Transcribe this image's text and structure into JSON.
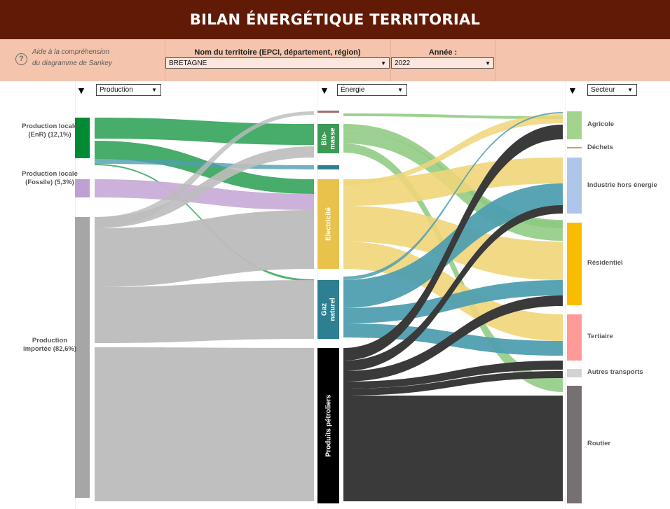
{
  "header": {
    "title": "BILAN ÉNERGÉTIQUE TERRITORIAL"
  },
  "help": {
    "line1": "Aide à la compréhension",
    "line2": "du diagramme de Sankey",
    "icon": "question-icon"
  },
  "filters": {
    "territory_label": "Nom du territoire (EPCI, département, région)",
    "territory_value": "BRETAGNE",
    "year_label": "Année :",
    "year_value": "2022"
  },
  "columns": {
    "source_dropdown": "Production",
    "middle_dropdown": "Énergie",
    "target_dropdown": "Secteur"
  },
  "nodes": {
    "sources": [
      {
        "id": "enr",
        "label": "Production locale (EnR) (12,1%)",
        "share_pct": 12.1,
        "color": "#008a34"
      },
      {
        "id": "fossile",
        "label": "Production locale (Fossile) (5,3%)",
        "share_pct": 5.3,
        "color": "#bfa0d2"
      },
      {
        "id": "importee",
        "label": "Production importée (82,6%)",
        "share_pct": 82.6,
        "color": "#a6a6a6"
      }
    ],
    "energies": [
      {
        "id": "biomasse",
        "label": "Bio-masse",
        "color": "#3c9a55"
      },
      {
        "id": "electricite",
        "label": "Electricité",
        "color": "#e8c24a"
      },
      {
        "id": "gaz",
        "label": "Gaz naturel",
        "color": "#2e7f92"
      },
      {
        "id": "petrole",
        "label": "Produits pétroliers",
        "color": "#000000"
      }
    ],
    "sectors": [
      {
        "id": "agricole",
        "label": "Agricole",
        "color": "#a3d48e"
      },
      {
        "id": "dechets",
        "label": "Déchets",
        "color": "#c8a070"
      },
      {
        "id": "industrie",
        "label": "Industrie hors énergie",
        "color": "#aec6ea"
      },
      {
        "id": "residentiel",
        "label": "Résidentiel",
        "color": "#f9bc00"
      },
      {
        "id": "tertiaire",
        "label": "Tertiaire",
        "color": "#ff9a98"
      },
      {
        "id": "autres",
        "label": "Autres transports",
        "color": "#d3d3d3"
      },
      {
        "id": "routier",
        "label": "Routier",
        "color": "#767070"
      }
    ]
  },
  "link_colors": {
    "enr": "#3ea862",
    "fossile": "#c9aed9",
    "importee": "#bcbcbc",
    "biomasse": "#8cc97e",
    "electricite": "#f0d579",
    "gaz": "#4f9fb0",
    "petrole": "#3a3a3a"
  },
  "chart_data": {
    "type": "sankey",
    "links_source_to_energy": [
      {
        "from": "enr",
        "to": "biomasse",
        "share_pct": 4.5
      },
      {
        "from": "enr",
        "to": "electricite",
        "share_pct": 3.7
      },
      {
        "from": "enr",
        "to": "gaz",
        "share_pct": 0.3
      },
      {
        "from": "enr",
        "to": "autres_energies",
        "share_pct": 3.6
      },
      {
        "from": "fossile",
        "to": "electricite",
        "share_pct": 5.3
      },
      {
        "from": "importee",
        "to": "biomasse",
        "share_pct": 4.0
      },
      {
        "from": "importee",
        "to": "electricite",
        "share_pct": 15.0
      },
      {
        "from": "importee",
        "to": "gaz",
        "share_pct": 16.0
      },
      {
        "from": "importee",
        "to": "petrole",
        "share_pct": 47.6
      }
    ],
    "links_energy_to_sector": [
      {
        "from": "biomasse",
        "to": "agricole",
        "share_pct": 1.0
      },
      {
        "from": "biomasse",
        "to": "residentiel",
        "share_pct": 5.5
      },
      {
        "from": "electricite",
        "to": "industrie",
        "share_pct": 7.0
      },
      {
        "from": "electricite",
        "to": "residentiel",
        "share_pct": 9.5
      },
      {
        "from": "electricite",
        "to": "tertiaire",
        "share_pct": 5.5
      },
      {
        "from": "gaz",
        "to": "industrie",
        "share_pct": 6.0
      },
      {
        "from": "gaz",
        "to": "residentiel",
        "share_pct": 4.5
      },
      {
        "from": "gaz",
        "to": "tertiaire",
        "share_pct": 3.5
      },
      {
        "from": "petrole",
        "to": "agricole",
        "share_pct": 3.5
      },
      {
        "from": "petrole",
        "to": "industrie",
        "share_pct": 2.0
      },
      {
        "from": "petrole",
        "to": "residentiel",
        "share_pct": 2.0
      },
      {
        "from": "petrole",
        "to": "tertiaire",
        "share_pct": 1.5
      },
      {
        "from": "petrole",
        "to": "autres",
        "share_pct": 1.5
      },
      {
        "from": "petrole",
        "to": "routier",
        "share_pct": 33.0
      }
    ]
  }
}
